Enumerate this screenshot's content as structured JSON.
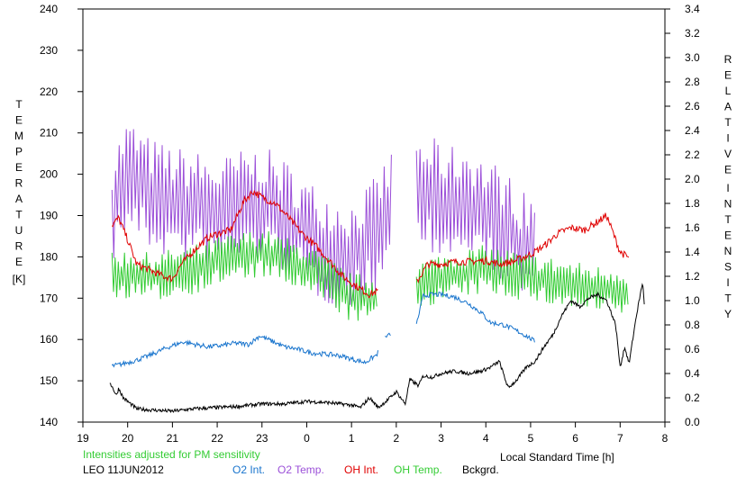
{
  "chart_data": {
    "type": "line",
    "title": "",
    "xlabel": "Local Standard Time [h]",
    "ylabel_left_letters": [
      "T",
      "E",
      "M",
      "P",
      "E",
      "R",
      "A",
      "T",
      "U",
      "R",
      "E"
    ],
    "ylabel_left_unit": "[K]",
    "ylabel_right_word1": [
      "R",
      "E",
      "L",
      "A",
      "T",
      "I",
      "V",
      "E"
    ],
    "ylabel_right_word2": [
      "I",
      "N",
      "T",
      "E",
      "N",
      "S",
      "I",
      "T",
      "Y"
    ],
    "note": "Intensities adjusted for PM sensitivity",
    "dataset_label": "LEO 11JUN2012",
    "x_ticks": [
      "19",
      "20",
      "21",
      "22",
      "23",
      "0",
      "1",
      "2",
      "3",
      "4",
      "5",
      "6",
      "7",
      "8"
    ],
    "xlim": [
      19,
      32
    ],
    "ylim_left": [
      140,
      240
    ],
    "y_left_ticks": [
      "140",
      "150",
      "160",
      "170",
      "180",
      "190",
      "200",
      "210",
      "220",
      "230",
      "240"
    ],
    "ylim_right": [
      0.0,
      3.4
    ],
    "y_right_ticks": [
      "0.0",
      "0.2",
      "0.4",
      "0.6",
      "0.8",
      "1.0",
      "1.2",
      "1.4",
      "1.6",
      "1.8",
      "2.0",
      "2.2",
      "2.4",
      "2.6",
      "2.8",
      "3.0",
      "3.2",
      "3.4"
    ],
    "grid": false,
    "legend_position": "bottom",
    "colors": {
      "o2_int": "#1874cd",
      "o2_temp": "#9b4fd8",
      "oh_int": "#e00000",
      "oh_temp": "#33cc33",
      "bckgrd": "#000000",
      "note": "#33cc33"
    },
    "series": [
      {
        "name": "O2 Int.",
        "axis": "right",
        "color": "#1874cd",
        "points": [
          [
            19.65,
            0.46
          ],
          [
            19.9,
            0.48
          ],
          [
            20.2,
            0.51
          ],
          [
            20.5,
            0.55
          ],
          [
            20.8,
            0.6
          ],
          [
            21.0,
            0.63
          ],
          [
            21.25,
            0.66
          ],
          [
            21.5,
            0.64
          ],
          [
            21.8,
            0.62
          ],
          [
            22.1,
            0.63
          ],
          [
            22.4,
            0.65
          ],
          [
            22.7,
            0.64
          ],
          [
            22.95,
            0.71
          ],
          [
            23.2,
            0.67
          ],
          [
            23.5,
            0.62
          ],
          [
            23.8,
            0.6
          ],
          [
            24.1,
            0.57
          ],
          [
            24.4,
            0.56
          ],
          [
            24.7,
            0.55
          ],
          [
            25.0,
            0.52
          ],
          [
            25.3,
            0.49
          ],
          [
            25.55,
            0.55
          ],
          [
            25.6,
            0.58
          ]
        ],
        "points2": [
          [
            25.75,
            0.7
          ],
          [
            25.9,
            0.73
          ]
        ],
        "points3": [
          [
            26.45,
            0.8
          ],
          [
            26.6,
            1.04
          ],
          [
            26.8,
            1.05
          ],
          [
            27.0,
            1.05
          ],
          [
            27.3,
            1.03
          ],
          [
            27.6,
            0.98
          ],
          [
            27.9,
            0.9
          ],
          [
            28.1,
            0.82
          ],
          [
            28.4,
            0.8
          ],
          [
            28.7,
            0.75
          ],
          [
            28.95,
            0.7
          ],
          [
            29.1,
            0.66
          ]
        ]
      },
      {
        "name": "O2 Temp.",
        "axis": "left",
        "color": "#9b4fd8",
        "mean": [
          [
            19.65,
            192
          ],
          [
            20.0,
            200
          ],
          [
            20.5,
            195
          ],
          [
            21.0,
            193
          ],
          [
            21.5,
            192
          ],
          [
            22.0,
            190
          ],
          [
            22.5,
            192
          ],
          [
            23.0,
            193
          ],
          [
            23.5,
            190
          ],
          [
            24.0,
            185
          ],
          [
            24.5,
            182
          ],
          [
            25.0,
            180
          ],
          [
            25.5,
            185
          ],
          [
            25.9,
            192
          ]
        ],
        "mean2": [
          [
            26.45,
            196
          ],
          [
            26.8,
            195
          ],
          [
            27.2,
            193
          ],
          [
            27.6,
            194
          ],
          [
            28.0,
            190
          ],
          [
            28.4,
            188
          ],
          [
            28.8,
            182
          ],
          [
            29.1,
            182
          ]
        ],
        "amplitude": 14
      },
      {
        "name": "OH Int.",
        "axis": "right",
        "color": "#e00000",
        "points": [
          [
            19.65,
            1.62
          ],
          [
            19.8,
            1.68
          ],
          [
            20.0,
            1.5
          ],
          [
            20.2,
            1.3
          ],
          [
            20.5,
            1.25
          ],
          [
            20.8,
            1.2
          ],
          [
            21.0,
            1.18
          ],
          [
            21.2,
            1.3
          ],
          [
            21.5,
            1.42
          ],
          [
            21.8,
            1.52
          ],
          [
            22.0,
            1.55
          ],
          [
            22.3,
            1.58
          ],
          [
            22.6,
            1.82
          ],
          [
            22.8,
            1.9
          ],
          [
            23.0,
            1.85
          ],
          [
            23.3,
            1.8
          ],
          [
            23.6,
            1.68
          ],
          [
            23.9,
            1.55
          ],
          [
            24.2,
            1.45
          ],
          [
            24.5,
            1.33
          ],
          [
            24.8,
            1.2
          ],
          [
            25.1,
            1.12
          ],
          [
            25.4,
            1.05
          ],
          [
            25.6,
            1.08
          ]
        ],
        "points2": [
          [
            26.45,
            1.15
          ],
          [
            26.7,
            1.3
          ],
          [
            27.0,
            1.3
          ],
          [
            27.3,
            1.32
          ],
          [
            27.6,
            1.32
          ],
          [
            28.0,
            1.33
          ],
          [
            28.3,
            1.3
          ],
          [
            28.6,
            1.32
          ],
          [
            29.0,
            1.38
          ],
          [
            29.3,
            1.45
          ],
          [
            29.6,
            1.55
          ],
          [
            29.9,
            1.6
          ],
          [
            30.2,
            1.58
          ],
          [
            30.5,
            1.65
          ],
          [
            30.7,
            1.7
          ],
          [
            30.85,
            1.55
          ],
          [
            31.0,
            1.4
          ],
          [
            31.2,
            1.35
          ]
        ]
      },
      {
        "name": "OH Temp.",
        "axis": "left",
        "color": "#33cc33",
        "mean": [
          [
            19.65,
            175
          ],
          [
            20.0,
            176
          ],
          [
            20.5,
            175
          ],
          [
            21.0,
            176
          ],
          [
            21.5,
            177
          ],
          [
            22.0,
            179
          ],
          [
            22.5,
            180
          ],
          [
            23.0,
            181
          ],
          [
            23.5,
            179
          ],
          [
            24.0,
            177
          ],
          [
            24.5,
            174
          ],
          [
            25.0,
            170
          ],
          [
            25.6,
            170
          ]
        ],
        "mean2": [
          [
            26.45,
            173
          ],
          [
            27.0,
            175
          ],
          [
            27.5,
            176
          ],
          [
            28.0,
            177
          ],
          [
            28.5,
            176
          ],
          [
            29.0,
            175
          ],
          [
            29.5,
            174
          ],
          [
            30.0,
            173
          ],
          [
            30.5,
            172
          ],
          [
            31.0,
            172
          ],
          [
            31.2,
            171
          ]
        ],
        "amplitude": 6
      },
      {
        "name": "Bckgrd.",
        "axis": "right",
        "color": "#000000",
        "points": [
          [
            19.6,
            0.33
          ],
          [
            19.75,
            0.22
          ],
          [
            19.8,
            0.28
          ],
          [
            19.9,
            0.2
          ],
          [
            20.2,
            0.11
          ],
          [
            20.5,
            0.1
          ],
          [
            21.0,
            0.09
          ],
          [
            21.5,
            0.11
          ],
          [
            22.0,
            0.12
          ],
          [
            22.5,
            0.13
          ],
          [
            23.0,
            0.15
          ],
          [
            23.5,
            0.15
          ],
          [
            24.0,
            0.17
          ],
          [
            24.5,
            0.16
          ],
          [
            25.0,
            0.14
          ],
          [
            25.2,
            0.12
          ],
          [
            25.4,
            0.2
          ],
          [
            25.6,
            0.12
          ],
          [
            25.8,
            0.18
          ],
          [
            26.0,
            0.25
          ],
          [
            26.2,
            0.15
          ],
          [
            26.3,
            0.35
          ],
          [
            26.5,
            0.3
          ],
          [
            26.6,
            0.38
          ],
          [
            26.8,
            0.37
          ],
          [
            27.0,
            0.4
          ],
          [
            27.3,
            0.42
          ],
          [
            27.6,
            0.4
          ],
          [
            27.9,
            0.42
          ],
          [
            28.1,
            0.45
          ],
          [
            28.3,
            0.5
          ],
          [
            28.5,
            0.28
          ],
          [
            28.7,
            0.35
          ],
          [
            28.9,
            0.45
          ],
          [
            29.1,
            0.5
          ],
          [
            29.3,
            0.62
          ],
          [
            29.5,
            0.72
          ],
          [
            29.7,
            0.88
          ],
          [
            29.9,
            1.0
          ],
          [
            30.1,
            0.95
          ],
          [
            30.3,
            1.02
          ],
          [
            30.5,
            1.05
          ],
          [
            30.7,
            1.0
          ],
          [
            30.9,
            0.8
          ],
          [
            31.0,
            0.45
          ],
          [
            31.1,
            0.62
          ],
          [
            31.2,
            0.48
          ],
          [
            31.35,
            0.85
          ],
          [
            31.5,
            1.15
          ],
          [
            31.55,
            0.93
          ]
        ]
      }
    ]
  },
  "legend": [
    {
      "label": "O2 Int.",
      "color": "#1874cd"
    },
    {
      "label": "O2 Temp.",
      "color": "#9b4fd8"
    },
    {
      "label": "OH Int.",
      "color": "#e00000"
    },
    {
      "label": "OH Temp.",
      "color": "#33cc33"
    },
    {
      "label": "Bckgrd.",
      "color": "#000000"
    }
  ]
}
